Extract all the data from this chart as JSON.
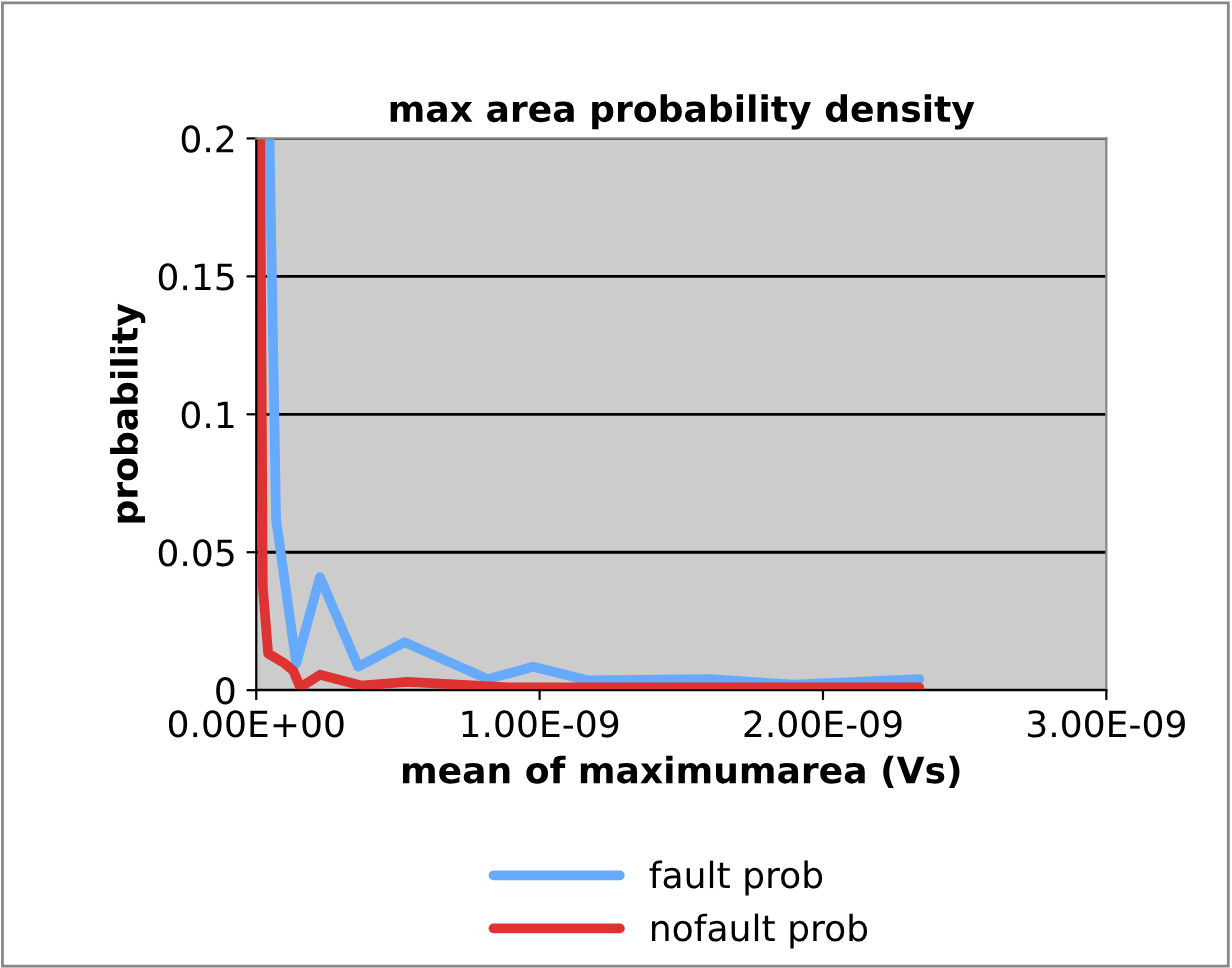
{
  "chart_data": {
    "type": "line",
    "title": "max area probability density",
    "xlabel": "mean of maximumarea (Vs)",
    "ylabel": "probability",
    "xlim": [
      0,
      3e-09
    ],
    "xticks": [
      {
        "value": 0,
        "label": "0.00E+00"
      },
      {
        "value": 1e-09,
        "label": "1.00E-09"
      },
      {
        "value": 2e-09,
        "label": "2.00E-09"
      },
      {
        "value": 3e-09,
        "label": "3.00E-09"
      }
    ],
    "ylim": [
      0,
      0.2
    ],
    "yticks": [
      0,
      0.05,
      0.1,
      0.15,
      0.2
    ],
    "grid": "y",
    "legend": "bottom",
    "marker": "none",
    "line_style": "solid",
    "series": [
      {
        "name": "fault prob",
        "color": "#66aaff",
        "x": [
          4.7e-11,
          7e-11,
          1.41e-10,
          2.25e-10,
          3.6e-10,
          5.23e-10,
          8.17e-10,
          9.77e-10,
          1.17e-09,
          1.6e-09,
          1.9e-09,
          2.34e-09
        ],
        "values": [
          0.2,
          0.062,
          0.0097,
          0.041,
          0.0085,
          0.0174,
          0.004,
          0.0085,
          0.0036,
          0.004,
          0.002,
          0.004
        ]
      },
      {
        "name": "nofault prob",
        "color": "#dd3333",
        "x": [
          1.4e-11,
          2.3e-11,
          4.2e-11,
          1e-10,
          1.31e-10,
          1.55e-10,
          2.25e-10,
          3.7e-10,
          5.35e-10,
          8.9e-10,
          2.34e-09
        ],
        "values": [
          0.2,
          0.0375,
          0.0133,
          0.0097,
          0.007,
          0.001,
          0.0056,
          0.0017,
          0.003,
          0.001,
          0.001
        ]
      }
    ]
  }
}
